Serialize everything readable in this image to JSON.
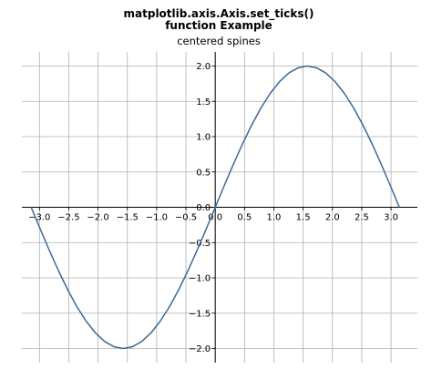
{
  "figure": {
    "suptitle_line1": "matplotlib.axis.Axis.set_ticks()",
    "suptitle_line2": "function Example"
  },
  "chart_data": {
    "type": "line",
    "title": "centered spines",
    "xlabel": "",
    "ylabel": "",
    "xlim": [
      -3.3,
      3.45
    ],
    "ylim": [
      -2.2,
      2.2
    ],
    "grid": true,
    "spines": "centered",
    "xticks": [
      -3.0,
      -2.5,
      -2.0,
      -1.5,
      -1.0,
      -0.5,
      0.0,
      0.5,
      1.0,
      1.5,
      2.0,
      2.5,
      3.0
    ],
    "xtick_labels": [
      "−3.0",
      "−2.5",
      "−2.0",
      "−1.5",
      "−1.0",
      "−0.5",
      "0.0",
      "0.5",
      "1.0",
      "1.5",
      "2.0",
      "2.5",
      "3.0"
    ],
    "yticks": [
      -2.0,
      -1.5,
      -1.0,
      -0.5,
      0.0,
      0.5,
      1.0,
      1.5,
      2.0
    ],
    "ytick_labels": [
      "−2.0",
      "−1.5",
      "−1.0",
      "−0.5",
      "0.0",
      "0.5",
      "1.0",
      "1.5",
      "2.0"
    ],
    "series": [
      {
        "color": "#3d6a93",
        "x": [
          -3.1416,
          -2.9845,
          -2.8274,
          -2.6704,
          -2.5133,
          -2.3562,
          -2.1991,
          -2.042,
          -1.885,
          -1.7279,
          -1.5708,
          -1.4137,
          -1.2566,
          -1.0996,
          -0.9425,
          -0.7854,
          -0.6283,
          -0.4712,
          -0.3142,
          -0.1571,
          0.0,
          0.1571,
          0.3142,
          0.4712,
          0.6283,
          0.7854,
          0.9425,
          1.0996,
          1.2566,
          1.4137,
          1.5708,
          1.7279,
          1.885,
          2.042,
          2.1991,
          2.3562,
          2.5133,
          2.6704,
          2.8274,
          2.9845,
          3.1416
        ],
        "y": [
          0.0,
          -0.3129,
          -0.618,
          -0.908,
          -1.1756,
          -1.4142,
          -1.618,
          -1.782,
          -1.9021,
          -1.9754,
          -2.0,
          -1.9754,
          -1.9021,
          -1.782,
          -1.618,
          -1.4142,
          -1.1756,
          -0.908,
          -0.618,
          -0.3129,
          0.0,
          0.3129,
          0.618,
          0.908,
          1.1756,
          1.4142,
          1.618,
          1.782,
          1.9021,
          1.9754,
          2.0,
          1.9754,
          1.9021,
          1.782,
          1.618,
          1.4142,
          1.1756,
          0.908,
          0.618,
          0.3129,
          0.0
        ]
      }
    ]
  }
}
